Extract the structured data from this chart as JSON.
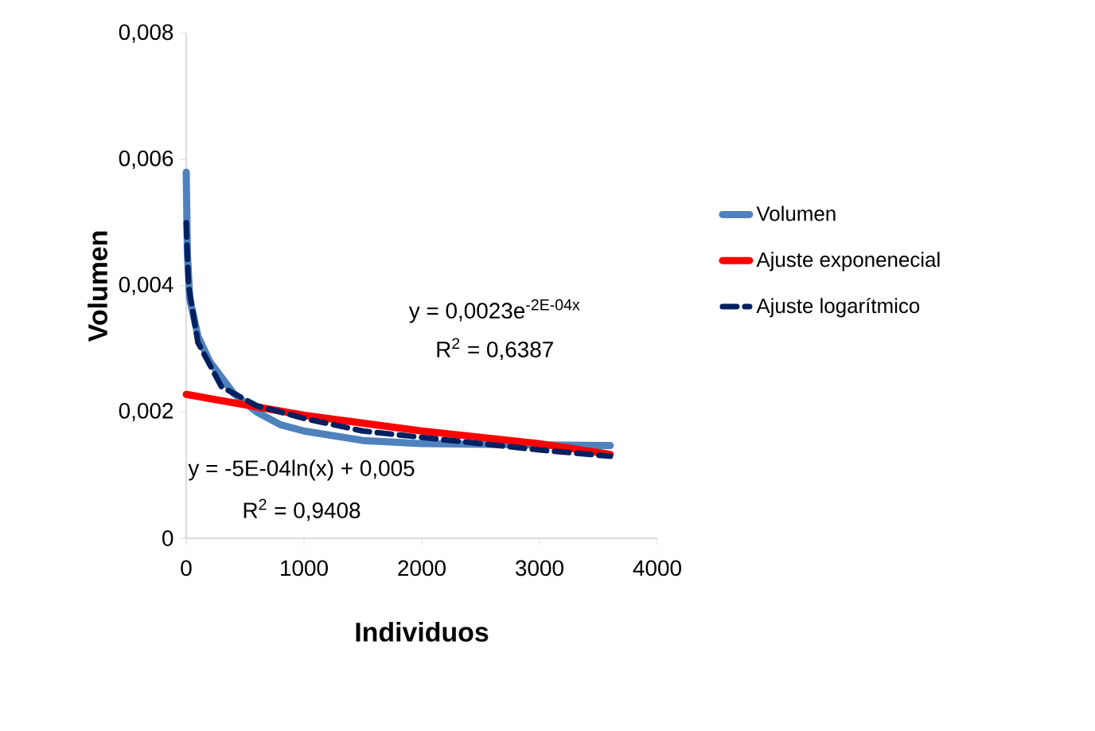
{
  "chart_data": {
    "type": "line",
    "xlabel": "Individuos",
    "ylabel": "Volumen",
    "xlim": [
      0,
      4000
    ],
    "ylim": [
      0,
      0.008
    ],
    "xticks": [
      0,
      1000,
      2000,
      3000,
      4000
    ],
    "yticks": [
      0,
      {
        "value": 0.002,
        "label": "0,002"
      },
      {
        "value": 0.004,
        "label": "0,004"
      },
      {
        "value": 0.006,
        "label": "0,006"
      },
      {
        "value": 0.008,
        "label": "0,008"
      }
    ],
    "grid": false,
    "legend": "right",
    "marker": "none",
    "series": [
      {
        "name": "Volumen",
        "color": "#4f81bd",
        "line_style": "solid",
        "x": [
          0,
          10,
          30,
          100,
          200,
          400,
          600,
          800,
          1000,
          1500,
          2000,
          3000,
          3600
        ],
        "values": [
          0.0058,
          0.0045,
          0.0038,
          0.0032,
          0.0028,
          0.0023,
          0.002,
          0.0018,
          0.0017,
          0.00155,
          0.0015,
          0.00148,
          0.00147
        ]
      },
      {
        "name": "Ajuste exponenecial",
        "color": "#ff0000",
        "line_style": "solid",
        "x": [
          0,
          1000,
          2000,
          3000,
          3600
        ],
        "values": [
          0.00228,
          0.00195,
          0.0017,
          0.0015,
          0.00133
        ]
      },
      {
        "name": "Ajuste logarítmico",
        "color": "#002060",
        "line_style": "dashed",
        "x": [
          0,
          20,
          100,
          300,
          600,
          1000,
          1500,
          2000,
          3000,
          3600
        ],
        "values": [
          0.005,
          0.004,
          0.0031,
          0.0024,
          0.0021,
          0.0019,
          0.0017,
          0.0016,
          0.0014,
          0.0013
        ]
      }
    ],
    "annotations": [
      "y = 0,0023e$^{-2E-04x}$",
      "R$^{2}$ = 0,6387",
      "y = -5E-04ln(x) + 0,005",
      "R$^{2}$ = 0,9408"
    ]
  }
}
